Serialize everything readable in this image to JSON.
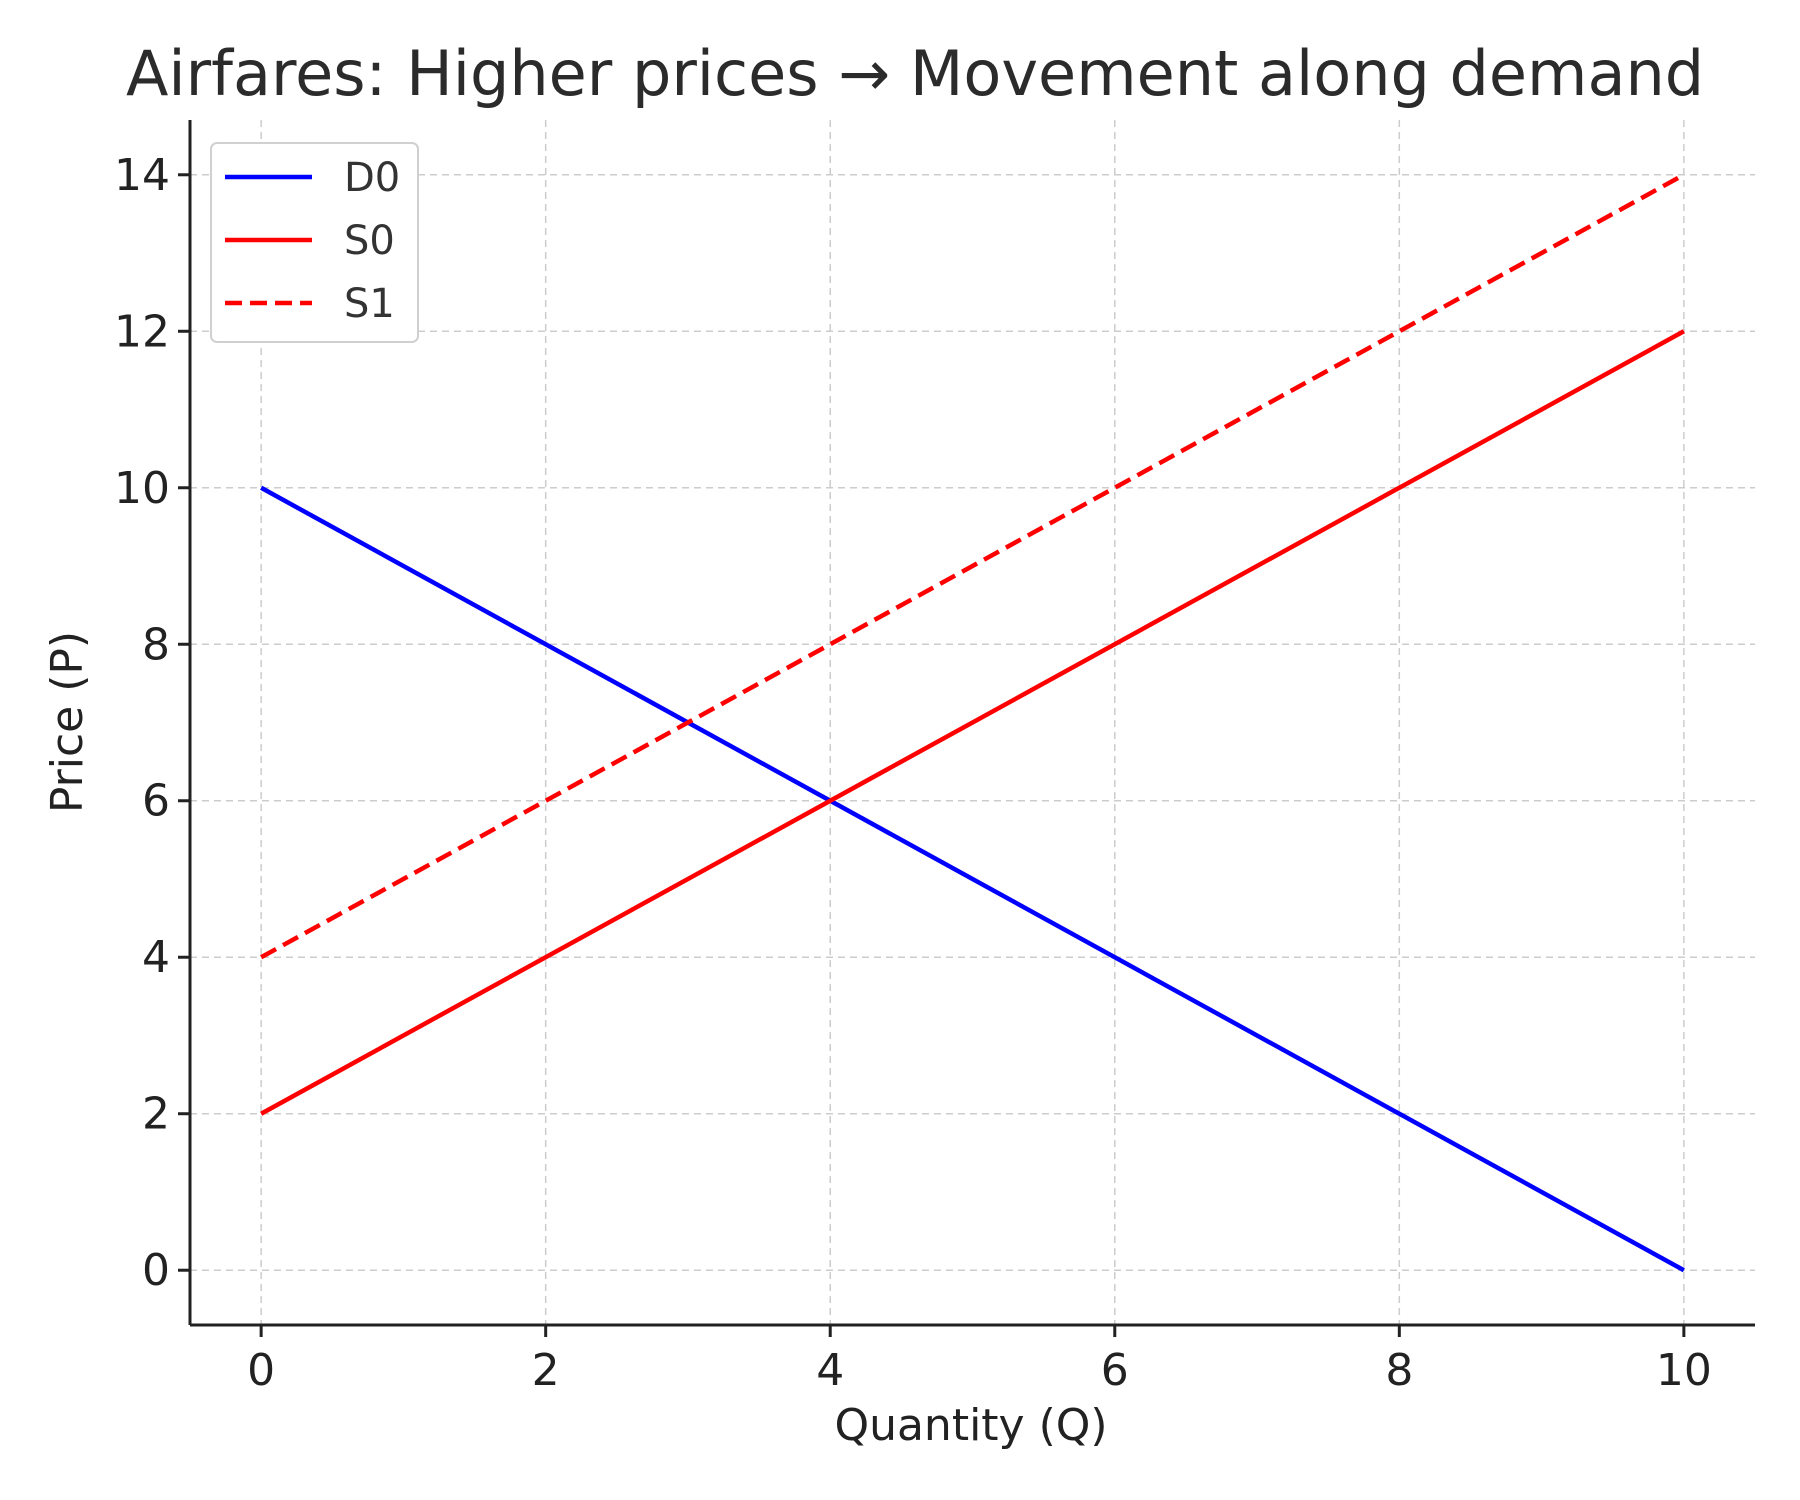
{
  "chart_data": {
    "type": "line",
    "title": "Airfares: Higher prices → Movement along demand",
    "xlabel": "Quantity (Q)",
    "ylabel": "Price (P)",
    "xlim": [
      -0.5,
      10.5
    ],
    "ylim": [
      -0.7,
      14.7
    ],
    "xticks": [
      0,
      2,
      4,
      6,
      8,
      10
    ],
    "yticks": [
      0,
      2,
      4,
      6,
      8,
      10,
      12,
      14
    ],
    "grid": true,
    "legend_position": "upper-left",
    "series": [
      {
        "name": "D0",
        "color": "#0000ff",
        "dash": "solid",
        "x": [
          0,
          10
        ],
        "y": [
          10,
          0
        ]
      },
      {
        "name": "S0",
        "color": "#ff0000",
        "dash": "solid",
        "x": [
          0,
          10
        ],
        "y": [
          2,
          12
        ]
      },
      {
        "name": "S1",
        "color": "#ff0000",
        "dash": "dashed",
        "x": [
          0,
          10
        ],
        "y": [
          4,
          14
        ]
      }
    ]
  }
}
